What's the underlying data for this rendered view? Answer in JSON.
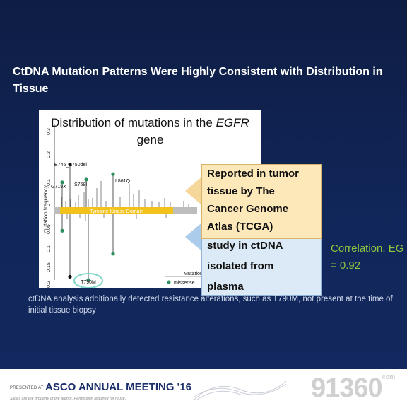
{
  "slide": {
    "title": "CtDNA Mutation Patterns Were Highly Consistent with Distribution in Tissue"
  },
  "figure": {
    "title_prefix": "Distribution of mutations in the ",
    "title_gene": "EGFR",
    "title_suffix": "gene",
    "ylabel": "mutation frequency",
    "domain_label": "Tyrosine Kinase Domain",
    "legend_title": "Mutation",
    "legend_item": "missense",
    "upper_ticks": [
      "0.3",
      "0.2",
      "0.1",
      "0"
    ],
    "lower_ticks": [
      "0.05",
      "0.1",
      "0.15",
      "0.2"
    ],
    "labels": {
      "e746": "E746_A750del",
      "g719x": "G719X",
      "s768i": "S768I",
      "l861q": "L861Q",
      "t790m": "T790M"
    }
  },
  "chart_data": {
    "type": "bar",
    "title": "Distribution of mutations in the EGFR gene",
    "ylabel": "mutation frequency",
    "series": [
      {
        "name": "",
        "categories": [
          "G719X",
          "E746_A750del",
          "S768I",
          "L861Q"
        ],
        "values": [
          0.09,
          0.155,
          0.1,
          0.12
        ]
      },
      {
        "name": "",
        "categories": [
          "G719X",
          "E746_A750del",
          "T790M",
          "L861Q"
        ],
        "values": [
          0.05,
          0.19,
          0.2,
          0.12
        ]
      }
    ],
    "ylim_upper": [
      0,
      0.3
    ],
    "ylim_lower": [
      0,
      0.2
    ]
  },
  "callouts": {
    "tcga": [
      "Reported in tumor",
      "tissue by The",
      "Cancer Genome",
      "Atlas (TCGA)"
    ],
    "ctdna": [
      "study in ctDNA",
      "isolated from",
      "plasma"
    ]
  },
  "correlation": {
    "line1": "Correlation, EG",
    "line2": "= 0.92"
  },
  "note": "ctDNA analysis additionally detected resistance alterations, such as T790M, not present at the time of initial tissue biopsy",
  "footer": {
    "presented": "PRESENTED AT",
    "meeting": "ASCO ANNUAL MEETING '16",
    "disclaimer": "Slides are the property of the author. Permission required for reuse."
  },
  "watermark": {
    "text": "9136",
    "suffix": "0",
    "small": "com"
  },
  "colors": {
    "background": "#0f2048",
    "domain_bar": "#f2c21c",
    "point_dark": "#111111",
    "point_green": "#2f8f5f",
    "callout_top": "#fde8ba",
    "callout_bottom": "#dbeaf6",
    "correlation": "#8dc63f"
  }
}
